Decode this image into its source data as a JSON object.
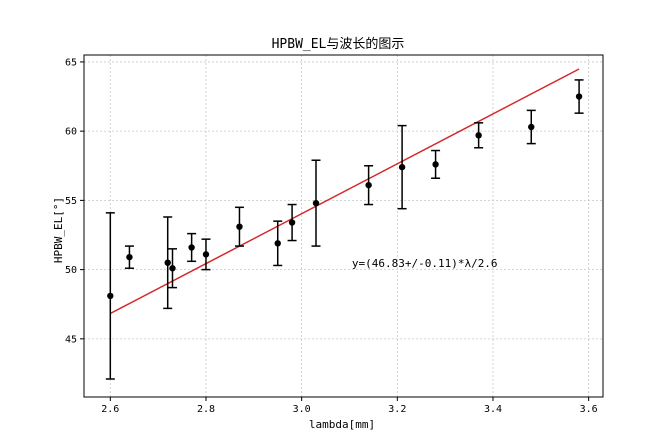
{
  "chart_data": {
    "type": "scatter",
    "title": "HPBW_EL与波长的图示",
    "xlabel": "lambda[mm]",
    "ylabel": "HPBW_EL[°]",
    "xlim": [
      2.545,
      3.63
    ],
    "ylim": [
      40.8,
      65.5
    ],
    "xticks": [
      2.6,
      2.8,
      3.0,
      3.2,
      3.4,
      3.6
    ],
    "xtick_labels": [
      "2.6",
      "2.8",
      "3.0",
      "3.2",
      "3.4",
      "3.6"
    ],
    "yticks": [
      45,
      50,
      55,
      60,
      65
    ],
    "ytick_labels": [
      "45",
      "50",
      "55",
      "60",
      "65"
    ],
    "grid": true,
    "annotation": {
      "text": "y=(46.83+/-0.11)*λ/2.6",
      "x": 3.105,
      "y": 50.2
    },
    "fit_line": {
      "color": "#d62728",
      "x": [
        2.6,
        3.58
      ],
      "y": [
        46.83,
        64.49
      ]
    },
    "point_color": "#000000",
    "points": [
      {
        "x": 2.6,
        "y": 48.1,
        "err": 6.0
      },
      {
        "x": 2.64,
        "y": 50.9,
        "err": 0.8
      },
      {
        "x": 2.72,
        "y": 50.5,
        "err": 3.3
      },
      {
        "x": 2.73,
        "y": 50.1,
        "err": 1.4
      },
      {
        "x": 2.77,
        "y": 51.6,
        "err": 1.0
      },
      {
        "x": 2.8,
        "y": 51.1,
        "err": 1.1
      },
      {
        "x": 2.87,
        "y": 53.1,
        "err": 1.4
      },
      {
        "x": 2.95,
        "y": 51.9,
        "err": 1.6
      },
      {
        "x": 2.98,
        "y": 53.4,
        "err": 1.3
      },
      {
        "x": 3.03,
        "y": 54.8,
        "err": 3.1
      },
      {
        "x": 3.14,
        "y": 56.1,
        "err": 1.4
      },
      {
        "x": 3.21,
        "y": 57.4,
        "err": 3.0
      },
      {
        "x": 3.28,
        "y": 57.6,
        "err": 1.0
      },
      {
        "x": 3.37,
        "y": 59.7,
        "err": 0.9
      },
      {
        "x": 3.48,
        "y": 60.3,
        "err": 1.2
      },
      {
        "x": 3.58,
        "y": 62.5,
        "err": 1.2
      }
    ]
  }
}
